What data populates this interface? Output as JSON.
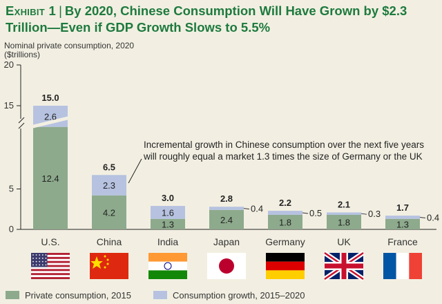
{
  "header": {
    "exhibit": "Exhibit 1",
    "title": "By 2020, Chinese Consumption Will Have Grown by $2.3 Trillion—Even if GDP Growth Slows to 5.5%"
  },
  "colors": {
    "base": "#8daa8c",
    "growth": "#b6c2e0",
    "accent": "#1e7a3e",
    "background": "#f2efe2"
  },
  "chart_data": {
    "type": "bar",
    "stacked": true,
    "ylabel": "Nominal private consumption, 2020\n($trillions)",
    "yticks": [
      0,
      5,
      15,
      20
    ],
    "ylim": [
      0,
      20
    ],
    "axis_break": true,
    "categories": [
      "U.S.",
      "China",
      "India",
      "Japan",
      "Germany",
      "UK",
      "France"
    ],
    "flags": [
      "us-flag-icon",
      "china-flag-icon",
      "india-flag-icon",
      "japan-flag-icon",
      "germany-flag-icon",
      "uk-flag-icon",
      "france-flag-icon"
    ],
    "series": [
      {
        "name": "Private consumption, 2015",
        "values": [
          12.4,
          4.2,
          1.3,
          2.4,
          1.8,
          1.8,
          1.3
        ]
      },
      {
        "name": "Consumption growth, 2015–2020",
        "values": [
          2.6,
          2.3,
          1.6,
          0.4,
          0.5,
          0.3,
          0.4
        ]
      }
    ],
    "totals": [
      15.0,
      6.5,
      3.0,
      2.8,
      2.2,
      2.1,
      1.7
    ],
    "base_labels": [
      "12.4",
      "4.2",
      "1.3",
      "2.4",
      "1.8",
      "1.8",
      "1.3"
    ],
    "growth_labels": [
      "2.6",
      "2.3",
      "1.6",
      "0.4",
      "0.5",
      "0.3",
      "0.4"
    ],
    "total_labels": [
      "15.0",
      "6.5",
      "3.0",
      "2.8",
      "2.2",
      "2.1",
      "1.7"
    ],
    "annotation": "Incremental growth in Chinese consumption over the next five years\nwill roughly equal a market 1.3 times the size of Germany or the UK"
  }
}
